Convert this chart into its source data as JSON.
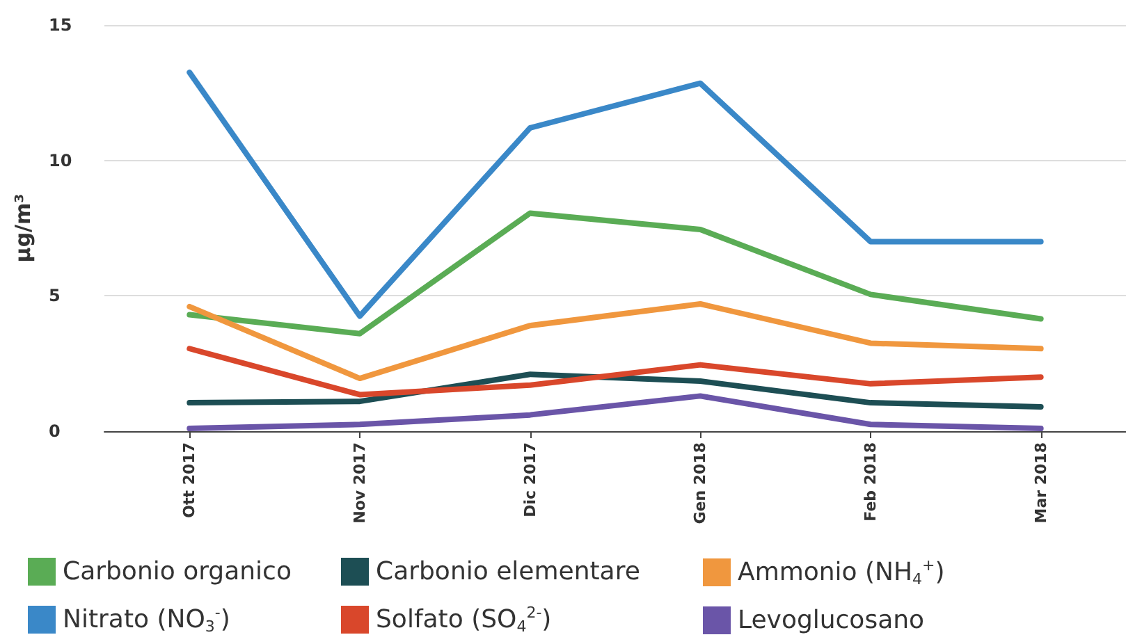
{
  "chart_data": {
    "type": "line",
    "ylabel": "µg/m³",
    "categories": [
      "Ott 2017",
      "Nov 2017",
      "Dic 2017",
      "Gen 2018",
      "Feb 2018",
      "Mar 2018"
    ],
    "ylim": [
      0,
      15
    ],
    "yticks": [
      0,
      5,
      10,
      15
    ],
    "grid": "y",
    "legend": "bottom",
    "marker": "none",
    "line_style": "solid",
    "series": [
      {
        "name": "Carbonio organico",
        "color": "#5aac55",
        "values": [
          4.3,
          3.6,
          8.05,
          7.45,
          5.05,
          4.15
        ]
      },
      {
        "name": "Carbonio elementare",
        "color": "#1d4e54",
        "values": [
          1.05,
          1.1,
          2.1,
          1.85,
          1.05,
          0.9
        ]
      },
      {
        "name": "Ammonio (NH$_{4}$$^{+}$)",
        "color": "#f0973e",
        "values": [
          4.6,
          1.95,
          3.9,
          4.7,
          3.25,
          3.05
        ]
      },
      {
        "name": "Nitrato (NO$_{3}$$^{-}$)",
        "color": "#3a88c8",
        "values": [
          13.25,
          4.25,
          11.2,
          12.85,
          7.0,
          7.0
        ]
      },
      {
        "name": "Solfato (SO$_{4}$$^{2-}$)",
        "color": "#d9472b",
        "values": [
          3.05,
          1.35,
          1.7,
          2.45,
          1.75,
          2.0
        ]
      },
      {
        "name": "Levoglucosano",
        "color": "#6a55a8",
        "values": [
          0.1,
          0.25,
          0.6,
          1.3,
          0.25,
          0.1
        ]
      }
    ]
  }
}
